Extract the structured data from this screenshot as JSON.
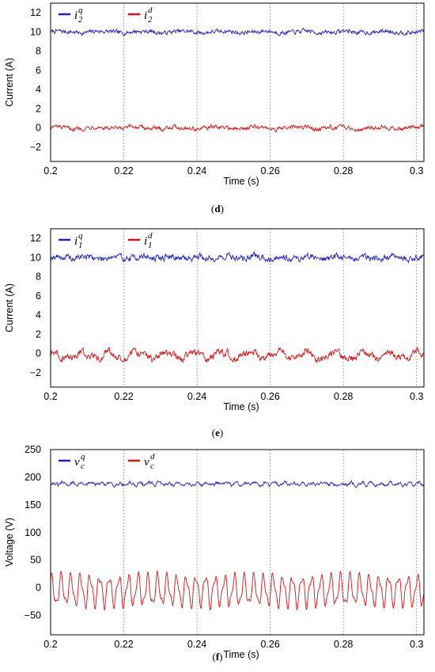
{
  "chart_data": [
    {
      "type": "line",
      "panel_label": "(d)",
      "xlabel": "Time (s)",
      "ylabel": "Current (A)",
      "xlim": [
        0.2,
        0.302
      ],
      "ylim": [
        -3.5,
        13
      ],
      "xticks": [
        "0.2",
        "0.22",
        "0.24",
        "0.26",
        "0.28",
        "0.3"
      ],
      "yticks": [
        "12",
        "10",
        "8",
        "6",
        "4",
        "2",
        "0",
        "−2"
      ],
      "grid": true,
      "legend_position": "top-left",
      "series": [
        {
          "name": "i2q",
          "legend": {
            "base": "i",
            "sup": "q",
            "sub": "2"
          },
          "color": "#1f1fd6",
          "mean": 10.0,
          "noise": 0.18,
          "ripple": 0.08
        },
        {
          "name": "i2d",
          "legend": {
            "base": "i",
            "sup": "d",
            "sub": "2"
          },
          "color": "#e01010",
          "mean": 0.0,
          "noise": 0.18,
          "ripple": 0.1
        }
      ]
    },
    {
      "type": "line",
      "panel_label": "(e)",
      "xlabel": "Time (s)",
      "ylabel": "Current (A)",
      "xlim": [
        0.2,
        0.302
      ],
      "ylim": [
        -3.5,
        13
      ],
      "xticks": [
        "0.2",
        "0.22",
        "0.24",
        "0.26",
        "0.28",
        "0.3"
      ],
      "yticks": [
        "12",
        "10",
        "8",
        "6",
        "4",
        "2",
        "0",
        "−2"
      ],
      "grid": true,
      "legend_position": "top-left",
      "series": [
        {
          "name": "i1q",
          "legend": {
            "base": "i",
            "sup": "q",
            "sub": "1"
          },
          "color": "#1f1fd6",
          "mean": 10.0,
          "noise": 0.28,
          "ripple": 0.12
        },
        {
          "name": "i1d",
          "legend": {
            "base": "i",
            "sup": "d",
            "sub": "1"
          },
          "color": "#e01010",
          "mean": -0.2,
          "noise": 0.3,
          "ripple": 0.35
        }
      ]
    },
    {
      "type": "line",
      "panel_label": "(f)",
      "xlabel": "Time (s)",
      "ylabel": "Voltage (V)",
      "xlim": [
        0.2,
        0.302
      ],
      "ylim": [
        -85,
        250
      ],
      "xticks": [
        "0.2",
        "0.22",
        "0.24",
        "0.26",
        "0.28",
        "0.3"
      ],
      "yticks": [
        "250",
        "200",
        "150",
        "100",
        "50",
        "0",
        "−50"
      ],
      "grid": true,
      "legend_position": "top-left",
      "series": [
        {
          "name": "vcq",
          "legend": {
            "base": "v",
            "sup": "q",
            "sub": "c"
          },
          "color": "#1f1fd6",
          "mean": 188,
          "noise": 2.5,
          "ripple": 2.0
        },
        {
          "name": "vcd",
          "legend": {
            "base": "v",
            "sup": "d",
            "sub": "c"
          },
          "color": "#e01010",
          "mean": -5,
          "noise": 2.0,
          "ripple": 25
        }
      ]
    }
  ]
}
